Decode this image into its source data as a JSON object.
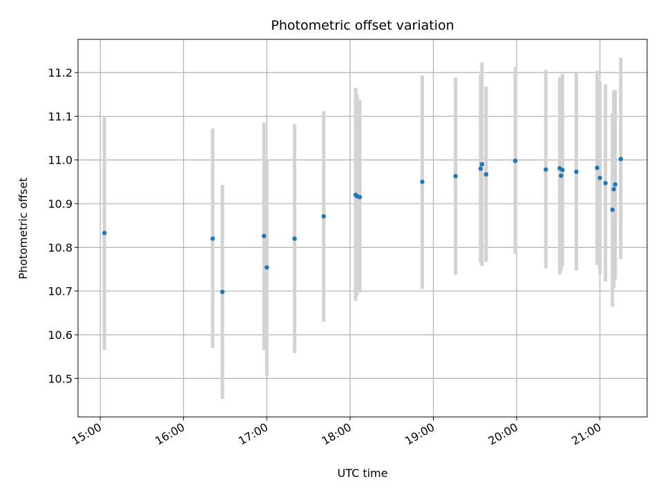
{
  "chart_data": {
    "type": "scatter",
    "title": "Photometric offset variation",
    "xlabel": "UTC time",
    "ylabel": "Photometric offset",
    "x_unit": "hours UTC",
    "xlim": [
      "14:44",
      "21:34"
    ],
    "ylim": [
      10.412,
      11.276
    ],
    "x_ticks": [
      "15:00",
      "16:00",
      "17:00",
      "18:00",
      "19:00",
      "20:00",
      "21:00"
    ],
    "y_ticks": [
      10.5,
      10.6,
      10.7,
      10.8,
      10.9,
      11.0,
      11.1,
      11.2
    ],
    "y_tick_labels": [
      "10.5",
      "10.6",
      "10.7",
      "10.8",
      "10.9",
      "11.0",
      "11.1",
      "11.2"
    ],
    "grid": true,
    "colors": {
      "point": "#1f77b4",
      "errorbar": "#d3d3d3",
      "grid": "#b0b0b0"
    },
    "series": [
      {
        "points": [
          {
            "t": "15:03",
            "y": 10.833,
            "lo": 10.565,
            "hi": 11.1
          },
          {
            "t": "16:21",
            "y": 10.82,
            "lo": 10.57,
            "hi": 11.072
          },
          {
            "t": "16:28",
            "y": 10.698,
            "lo": 10.453,
            "hi": 10.943
          },
          {
            "t": "16:58",
            "y": 10.826,
            "lo": 10.565,
            "hi": 11.086
          },
          {
            "t": "17:00",
            "y": 10.754,
            "lo": 10.505,
            "hi": 11.002
          },
          {
            "t": "17:20",
            "y": 10.82,
            "lo": 10.558,
            "hi": 11.082
          },
          {
            "t": "17:41",
            "y": 10.871,
            "lo": 10.63,
            "hi": 11.112
          },
          {
            "t": "18:04",
            "y": 10.92,
            "lo": 10.677,
            "hi": 11.165
          },
          {
            "t": "18:05",
            "y": 10.917,
            "lo": 10.69,
            "hi": 11.15
          },
          {
            "t": "18:07",
            "y": 10.915,
            "lo": 10.697,
            "hi": 11.138
          },
          {
            "t": "18:52",
            "y": 10.95,
            "lo": 10.705,
            "hi": 11.193
          },
          {
            "t": "19:16",
            "y": 10.963,
            "lo": 10.737,
            "hi": 11.189
          },
          {
            "t": "19:34",
            "y": 10.98,
            "lo": 10.765,
            "hi": 11.196
          },
          {
            "t": "19:35",
            "y": 10.99,
            "lo": 10.758,
            "hi": 11.223
          },
          {
            "t": "19:38",
            "y": 10.967,
            "lo": 10.767,
            "hi": 11.168
          },
          {
            "t": "19:59",
            "y": 10.998,
            "lo": 10.785,
            "hi": 11.212
          },
          {
            "t": "20:21",
            "y": 10.978,
            "lo": 10.752,
            "hi": 11.206
          },
          {
            "t": "20:31",
            "y": 10.981,
            "lo": 10.738,
            "hi": 11.19
          },
          {
            "t": "20:32",
            "y": 10.964,
            "lo": 10.745,
            "hi": 11.183
          },
          {
            "t": "20:33",
            "y": 10.977,
            "lo": 10.757,
            "hi": 11.197
          },
          {
            "t": "20:43",
            "y": 10.973,
            "lo": 10.747,
            "hi": 11.199
          },
          {
            "t": "20:58",
            "y": 10.982,
            "lo": 10.76,
            "hi": 11.204
          },
          {
            "t": "21:00",
            "y": 10.959,
            "lo": 10.738,
            "hi": 11.18
          },
          {
            "t": "21:04",
            "y": 10.947,
            "lo": 10.722,
            "hi": 11.173
          },
          {
            "t": "21:09",
            "y": 10.886,
            "lo": 10.665,
            "hi": 11.107
          },
          {
            "t": "21:10",
            "y": 10.933,
            "lo": 10.707,
            "hi": 11.159
          },
          {
            "t": "21:11",
            "y": 10.944,
            "lo": 10.727,
            "hi": 11.16
          },
          {
            "t": "21:15",
            "y": 11.002,
            "lo": 10.773,
            "hi": 11.234
          }
        ]
      }
    ]
  }
}
